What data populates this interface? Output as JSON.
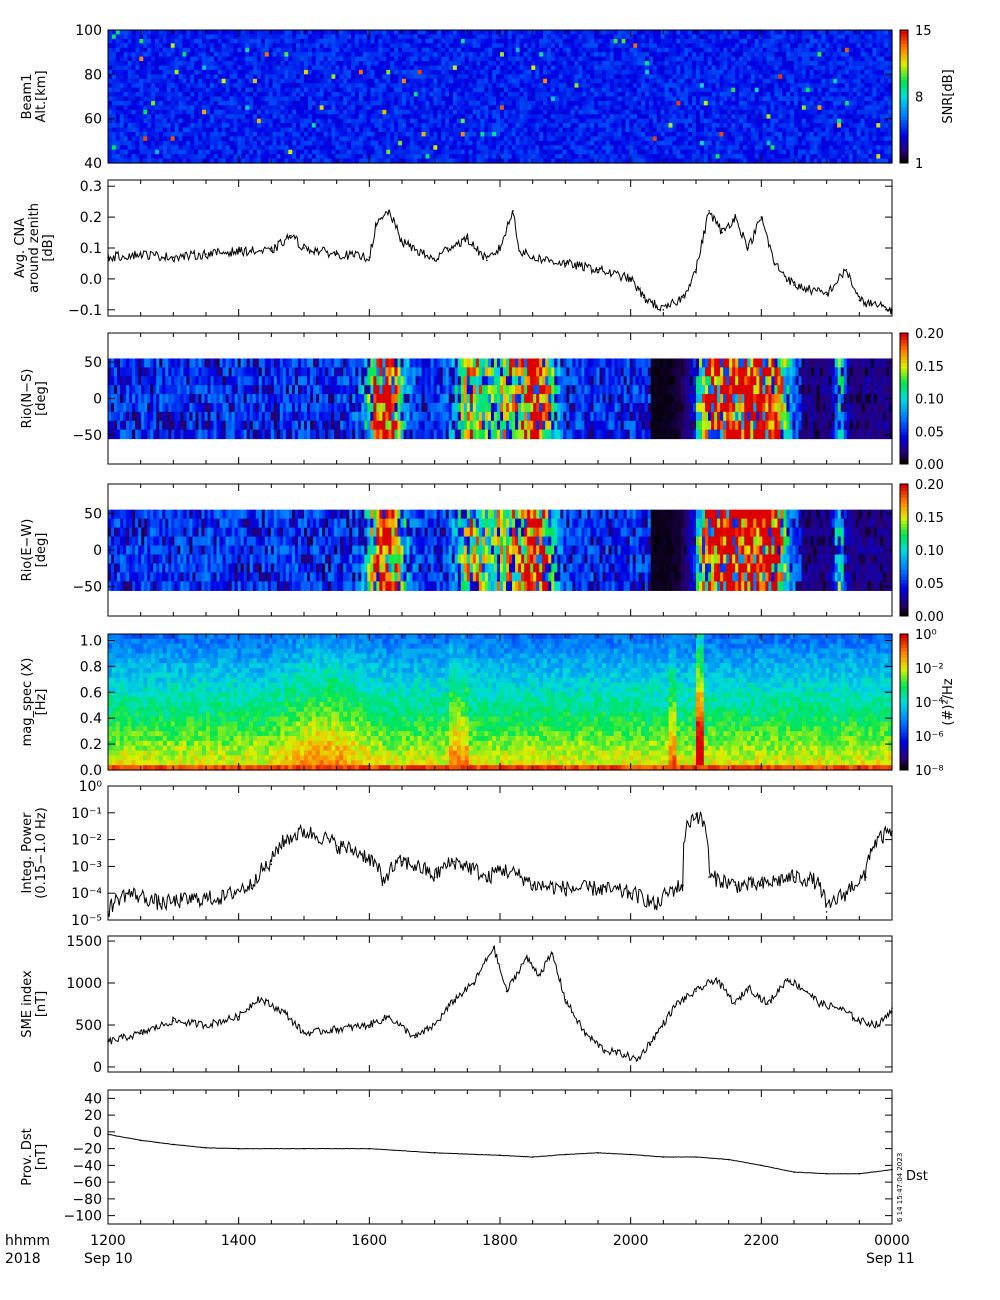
{
  "time_axis": {
    "row1_label": "hhmm",
    "row2_label": "2018",
    "ticks": [
      "1200",
      "1400",
      "1600",
      "1800",
      "2000",
      "2200",
      "0000"
    ],
    "start_date": "Sep 10",
    "end_date": "Sep 11"
  },
  "footer": {
    "stamp": "6 14 15:47:04 2023",
    "mark": "Dst"
  },
  "chart_data": [
    {
      "id": "beam1",
      "type": "heatmap",
      "ylabel": [
        "Beam1",
        "Alt.[km]"
      ],
      "ylim": [
        40,
        100
      ],
      "yticks": [
        40,
        60,
        80,
        100
      ],
      "colorbar": {
        "label": "SNR[dB]",
        "range": [
          1,
          15
        ],
        "ticks": [
          "1",
          "8",
          "15"
        ]
      }
    },
    {
      "id": "cna",
      "type": "line",
      "ylabel": [
        "Avg. CNA",
        "around zenith",
        "[dB]"
      ],
      "ylim": [
        -0.12,
        0.32
      ],
      "yticks": [
        "−0.1",
        "0.0",
        "0.1",
        "0.2",
        "0.3"
      ],
      "x_hours": [
        12.0,
        12.5,
        13.0,
        13.5,
        14.0,
        14.5,
        14.8,
        15.0,
        15.5,
        16.0,
        16.1,
        16.3,
        16.5,
        17.0,
        17.2,
        17.5,
        17.8,
        18.0,
        18.2,
        18.3,
        18.5,
        19.0,
        19.5,
        20.0,
        20.2,
        20.5,
        20.8,
        21.0,
        21.2,
        21.4,
        21.6,
        21.8,
        22.0,
        22.2,
        22.5,
        23.0,
        23.3,
        23.5,
        24.0
      ],
      "values": [
        0.07,
        0.08,
        0.07,
        0.08,
        0.09,
        0.09,
        0.14,
        0.1,
        0.08,
        0.07,
        0.17,
        0.22,
        0.12,
        0.06,
        0.1,
        0.13,
        0.06,
        0.1,
        0.22,
        0.09,
        0.07,
        0.05,
        0.03,
        0.0,
        -0.06,
        -0.1,
        -0.06,
        0.03,
        0.22,
        0.15,
        0.2,
        0.1,
        0.2,
        0.05,
        -0.02,
        -0.05,
        0.03,
        -0.07,
        -0.1
      ]
    },
    {
      "id": "rio-ns",
      "type": "heatmap",
      "ylabel": [
        "Rio(N−S)",
        "[deg]"
      ],
      "ylim": [
        -90,
        90
      ],
      "yticks": [
        "−50",
        "0",
        "50"
      ],
      "colorbar": {
        "range": [
          0,
          0.2
        ],
        "ticks": [
          "0.00",
          "0.05",
          "0.10",
          "0.15",
          "0.20"
        ]
      }
    },
    {
      "id": "rio-ew",
      "type": "heatmap",
      "ylabel": [
        "Rio(E−W)",
        "[deg]"
      ],
      "ylim": [
        -90,
        90
      ],
      "yticks": [
        "−50",
        "0",
        "50"
      ],
      "colorbar": {
        "range": [
          0,
          0.2
        ],
        "ticks": [
          "0.00",
          "0.05",
          "0.10",
          "0.15",
          "0.20"
        ]
      }
    },
    {
      "id": "mag-spec",
      "type": "heatmap",
      "ylabel": [
        "mag_spec (X)",
        "[Hz]"
      ],
      "ylim": [
        0,
        1.05
      ],
      "yticks": [
        "0.0",
        "0.2",
        "0.4",
        "0.6",
        "0.8",
        "1.0"
      ],
      "colorbar": {
        "label": "(#)²/Hz",
        "ticks": [
          "10⁻⁸",
          "10⁻⁶",
          "10⁻⁴",
          "10⁻²",
          "10⁰"
        ]
      }
    },
    {
      "id": "integ-power",
      "type": "line",
      "scale": "log",
      "ylabel": [
        "Integ. Power",
        "(0.15−1.0 Hz)"
      ],
      "ylim": [
        1e-05,
        1
      ],
      "yticks": [
        "10⁻⁵",
        "10⁻⁴",
        "10⁻³",
        "10⁻²",
        "10⁻¹",
        "10⁰"
      ],
      "x_hours": [
        12.0,
        12.3,
        12.8,
        13.3,
        13.8,
        14.2,
        14.5,
        15.0,
        15.5,
        16.0,
        16.2,
        16.5,
        17.0,
        17.3,
        17.8,
        18.0,
        18.5,
        19.0,
        19.5,
        20.0,
        20.4,
        20.8,
        21.0,
        21.2,
        21.6,
        22.0,
        22.5,
        22.8,
        23.0,
        23.3,
        23.6,
        24.0
      ],
      "values": [
        2e-05,
        0.0001,
        4e-05,
        6e-05,
        7e-05,
        0.0002,
        0.0012,
        0.02,
        0.006,
        0.002,
        0.0002,
        0.0015,
        0.0004,
        0.0015,
        0.0003,
        0.0008,
        0.0002,
        0.00015,
        0.00015,
        0.0001,
        3e-05,
        0.0002,
        0.09,
        0.0004,
        0.0002,
        0.0002,
        0.0004,
        0.0003,
        2e-05,
        0.0001,
        0.0004,
        0.02
      ]
    },
    {
      "id": "sme",
      "type": "line",
      "ylabel": [
        "SME index",
        "[nT]"
      ],
      "ylim": [
        -60,
        1560
      ],
      "yticks": [
        "0",
        "500",
        "1000",
        "1500"
      ],
      "x_hours": [
        12.0,
        12.5,
        13.0,
        13.5,
        14.0,
        14.3,
        14.7,
        15.0,
        15.5,
        16.0,
        16.3,
        16.7,
        17.0,
        17.3,
        17.6,
        17.9,
        18.1,
        18.4,
        18.6,
        18.8,
        19.0,
        19.3,
        19.6,
        19.9,
        20.1,
        20.4,
        20.7,
        21.0,
        21.3,
        21.6,
        21.8,
        22.1,
        22.4,
        22.7,
        22.9,
        23.2,
        23.5,
        23.8,
        24.0
      ],
      "values": [
        300,
        400,
        550,
        500,
        600,
        820,
        650,
        400,
        450,
        500,
        600,
        350,
        500,
        800,
        1000,
        1430,
        900,
        1300,
        1100,
        1350,
        800,
        400,
        200,
        150,
        80,
        400,
        750,
        900,
        1050,
        750,
        950,
        750,
        1050,
        900,
        750,
        700,
        550,
        500,
        700
      ]
    },
    {
      "id": "dst",
      "type": "line",
      "ylabel": [
        "Prov. Dst",
        "[nT]"
      ],
      "ylim": [
        -110,
        50
      ],
      "yticks": [
        "−100",
        "−80",
        "−60",
        "−40",
        "−20",
        "0",
        "20",
        "40"
      ],
      "x_hours": [
        12.0,
        12.5,
        13.0,
        13.5,
        14.0,
        15.0,
        16.0,
        17.0,
        18.0,
        18.5,
        19.0,
        19.5,
        20.0,
        20.5,
        21.0,
        21.5,
        22.0,
        22.5,
        23.0,
        23.5,
        24.0
      ],
      "values": [
        -3,
        -10,
        -15,
        -19,
        -20,
        -20,
        -20,
        -25,
        -28,
        -30,
        -27,
        -25,
        -27,
        -30,
        -30,
        -33,
        -40,
        -48,
        -50,
        -50,
        -45
      ]
    }
  ]
}
